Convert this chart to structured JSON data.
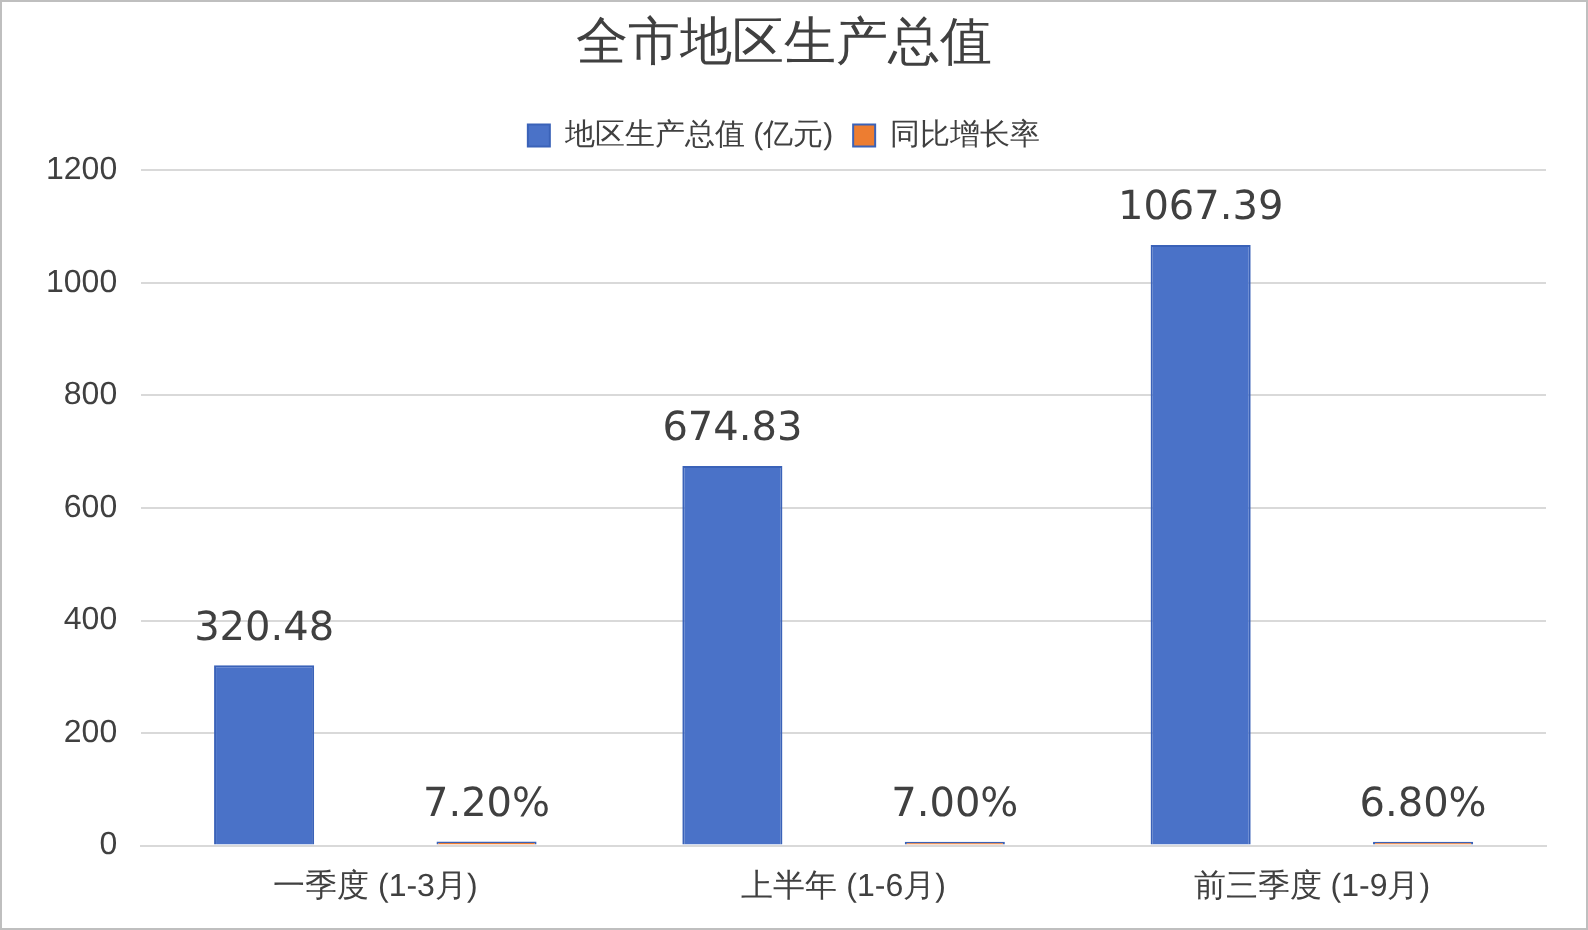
{
  "chart_data": {
    "type": "bar",
    "title": "全市地区生产总值",
    "categories": [
      "一季度 (1-3月)",
      "上半年 (1-6月)",
      "前三季度 (1-9月)"
    ],
    "series": [
      {
        "name": "地区生产总值 (亿元)",
        "color": "#4a72c8",
        "values": [
          320.48,
          674.83,
          1067.39
        ],
        "value_labels": [
          "320.48",
          "674.83",
          "1067.39"
        ]
      },
      {
        "name": "同比增长率",
        "color": "#ed7d31",
        "values": [
          7.2,
          7.0,
          6.8
        ],
        "value_labels": [
          "7.20%",
          "7.00%",
          "6.80%"
        ]
      }
    ],
    "ylim": [
      0,
      1200
    ],
    "yticks": [
      0,
      200,
      400,
      600,
      800,
      1000,
      1200
    ],
    "grid": "y",
    "legend": "top"
  }
}
